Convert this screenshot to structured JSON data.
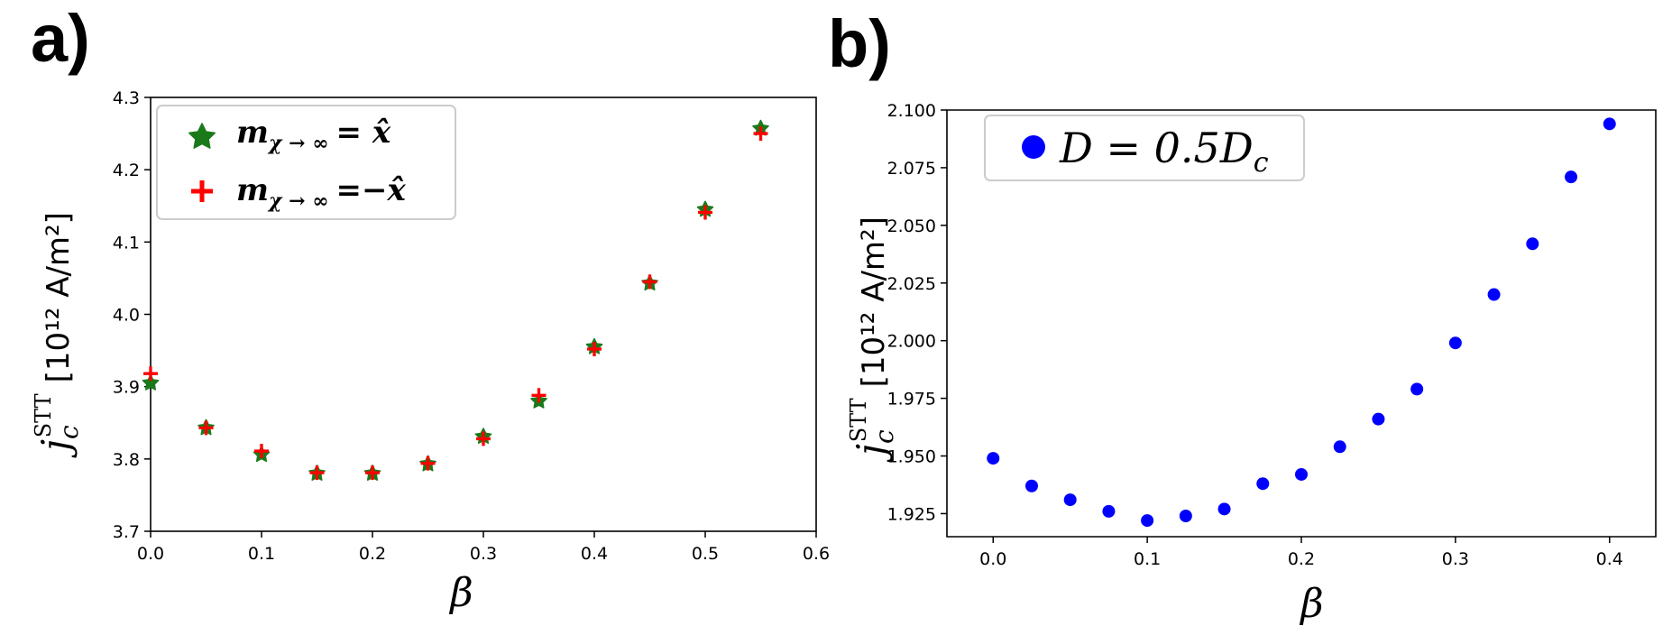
{
  "panels": {
    "a": {
      "label": "a)"
    },
    "b": {
      "label": "b)"
    }
  },
  "chart_data": [
    {
      "type": "scatter",
      "panel": "a",
      "xlabel": "β",
      "ylabel": {
        "symbol": "j",
        "sub": "c",
        "sup": "STT",
        "unit": "[10¹² A/m²]"
      },
      "xlim": [
        0.0,
        0.6
      ],
      "ylim": [
        3.7,
        4.3
      ],
      "xticks": [
        "0.0",
        "0.1",
        "0.2",
        "0.3",
        "0.4",
        "0.5",
        "0.6"
      ],
      "yticks": [
        "3.7",
        "3.8",
        "3.9",
        "4.0",
        "4.1",
        "4.2",
        "4.3"
      ],
      "grid": false,
      "legend_position": "top-left",
      "series": [
        {
          "name": "m_{χ→∞} = x̂",
          "name_parts": {
            "base": "m",
            "sub": "χ → ∞",
            "rhs": "= x̂"
          },
          "marker": "star",
          "color": "#1a7a1a",
          "x": [
            0.0,
            0.05,
            0.1,
            0.15,
            0.2,
            0.25,
            0.3,
            0.35,
            0.4,
            0.45,
            0.5,
            0.55
          ],
          "y": [
            3.905,
            3.843,
            3.806,
            3.78,
            3.78,
            3.793,
            3.831,
            3.88,
            3.955,
            4.043,
            4.145,
            4.257
          ]
        },
        {
          "name": "m_{χ→∞} = −x̂",
          "name_parts": {
            "base": "m",
            "sub": "χ → ∞",
            "rhs": "=−x̂"
          },
          "marker": "plus",
          "color": "#ff0000",
          "x": [
            0.0,
            0.05,
            0.1,
            0.15,
            0.2,
            0.25,
            0.3,
            0.35,
            0.4,
            0.45,
            0.5,
            0.55
          ],
          "y": [
            3.918,
            3.843,
            3.811,
            3.781,
            3.781,
            3.794,
            3.828,
            3.888,
            3.952,
            4.045,
            4.141,
            4.25
          ]
        }
      ]
    },
    {
      "type": "scatter",
      "panel": "b",
      "xlabel": "β",
      "ylabel": {
        "symbol": "j",
        "sub": "c",
        "sup": "STT",
        "unit": "[10¹² A/m²]"
      },
      "xlim": [
        -0.03,
        0.43
      ],
      "ylim": [
        1.915,
        2.1
      ],
      "xticks": [
        "0.0",
        "0.1",
        "0.2",
        "0.3",
        "0.4"
      ],
      "yticks": [
        "1.925",
        "1.950",
        "1.975",
        "2.000",
        "2.025",
        "2.050",
        "2.075",
        "2.100"
      ],
      "grid": false,
      "legend_position": "top-left",
      "series": [
        {
          "name": "D = 0.5D_c",
          "name_parts": {
            "text": "D = 0.5D",
            "sub": "c"
          },
          "marker": "circle",
          "color": "#0000ff",
          "x": [
            0.0,
            0.025,
            0.05,
            0.075,
            0.1,
            0.125,
            0.15,
            0.175,
            0.2,
            0.225,
            0.25,
            0.275,
            0.3,
            0.325,
            0.35,
            0.375,
            0.4
          ],
          "y": [
            1.949,
            1.937,
            1.931,
            1.926,
            1.922,
            1.924,
            1.927,
            1.938,
            1.942,
            1.954,
            1.966,
            1.979,
            1.999,
            2.02,
            2.042,
            2.071,
            2.094
          ]
        }
      ]
    }
  ]
}
